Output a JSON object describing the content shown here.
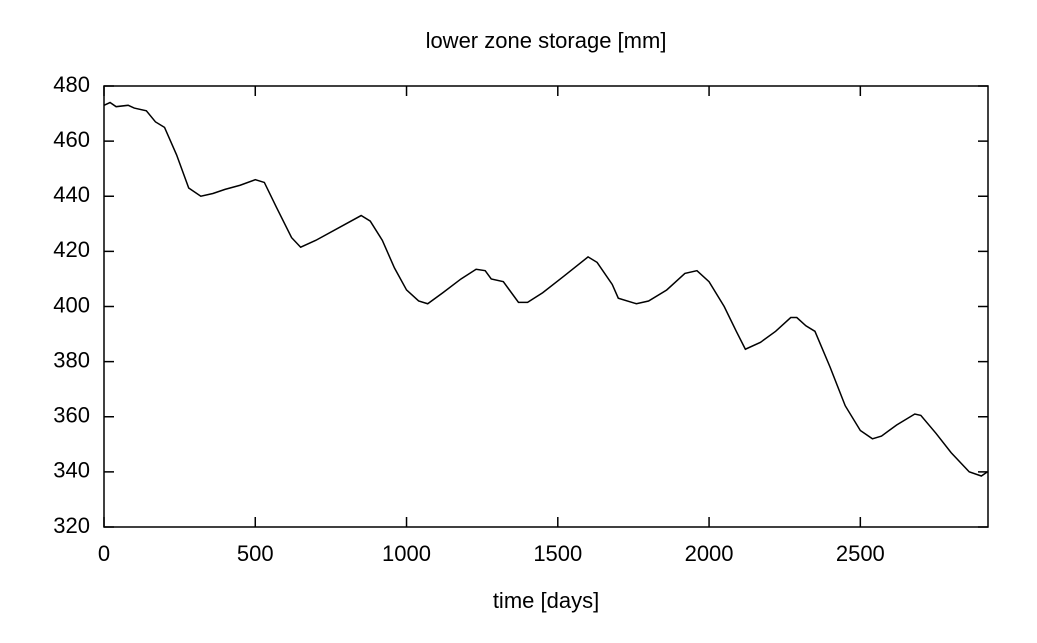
{
  "chart_data": {
    "type": "line",
    "title": "lower zone storage [mm]",
    "x_label": "time [days]",
    "x": [
      0,
      20,
      40,
      80,
      100,
      140,
      170,
      200,
      240,
      280,
      320,
      360,
      400,
      450,
      500,
      530,
      570,
      620,
      650,
      700,
      800,
      850,
      880,
      920,
      960,
      1000,
      1040,
      1070,
      1120,
      1180,
      1230,
      1260,
      1280,
      1320,
      1370,
      1400,
      1450,
      1520,
      1600,
      1630,
      1680,
      1700,
      1760,
      1800,
      1860,
      1920,
      1960,
      2000,
      2050,
      2090,
      2120,
      2170,
      2220,
      2270,
      2290,
      2320,
      2350,
      2400,
      2450,
      2500,
      2540,
      2570,
      2620,
      2680,
      2700,
      2750,
      2800,
      2860,
      2900,
      2920
    ],
    "series": [
      {
        "name": "lower zone storage",
        "color": "#000000",
        "values": [
          473,
          474,
          472.5,
          473,
          472,
          471,
          467,
          465,
          455,
          443,
          440,
          441,
          442.5,
          444,
          446,
          445,
          436,
          425,
          421.5,
          424,
          430,
          433,
          431,
          424,
          414,
          406,
          402,
          401,
          405,
          410,
          413.5,
          413,
          410,
          409,
          401.5,
          401.5,
          405,
          411,
          418,
          416,
          408,
          403,
          401,
          402,
          406,
          412,
          413,
          409,
          400,
          391,
          384.5,
          387,
          391,
          396,
          396,
          393,
          391,
          378,
          364,
          355,
          352,
          353,
          357,
          361,
          360.5,
          354,
          347,
          340,
          338.5,
          340
        ]
      }
    ],
    "xlim": [
      0,
      2922
    ],
    "ylim": [
      320,
      480
    ],
    "xticks": [
      0,
      500,
      1000,
      1500,
      2000,
      2500
    ],
    "yticks": [
      320,
      340,
      360,
      380,
      400,
      420,
      440,
      460,
      480
    ]
  }
}
